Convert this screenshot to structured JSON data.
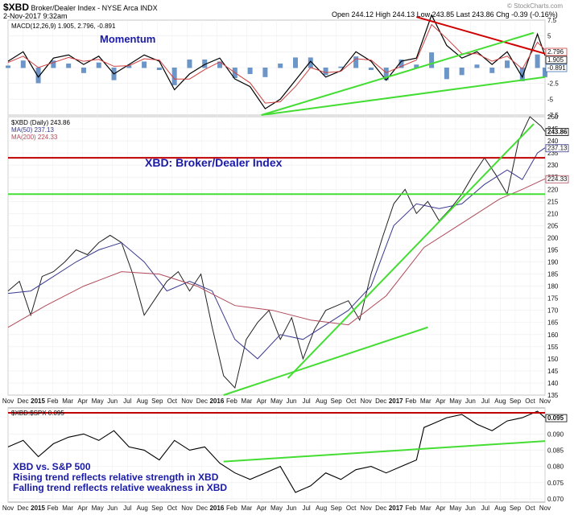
{
  "header": {
    "ticker": "$XBD",
    "description": "Broker/Dealer Index - NYSE Arca INDX",
    "date": "2-Nov-2017 9:32am",
    "ohlc": "Open 244.12  High 244.13  Low 243.85  Last 243.86  Chg -0.39 (-0.16%)",
    "watermark": "© StockCharts.com"
  },
  "chart_data": [
    {
      "type": "line",
      "name": "macd-panel",
      "legend": "MACD(12,26,9) 1.905, 2.796, -0.891",
      "label": "Momentum",
      "ylim": [
        -7.5,
        7.5
      ],
      "yticks": [
        -7.5,
        -5.0,
        -2.5,
        0.0,
        2.5,
        5.0,
        7.5
      ],
      "last_values": [
        "2.796",
        "1.905",
        "-0.891"
      ],
      "series": [
        {
          "name": "MACD",
          "x": [
            0,
            4,
            8,
            12,
            16,
            20,
            24,
            28,
            32,
            36,
            40,
            44,
            48,
            52,
            56,
            60,
            64,
            68,
            72,
            76,
            80,
            84,
            88,
            92,
            96,
            100,
            104,
            108,
            112,
            116,
            120,
            124,
            128,
            132,
            136,
            140,
            142
          ],
          "values": [
            1.0,
            2.5,
            -1.5,
            1.5,
            2.0,
            0.5,
            1.8,
            -1.0,
            0.5,
            2.0,
            1.0,
            -3.5,
            -1.0,
            0.5,
            1.5,
            -1.8,
            -3.0,
            -6.5,
            -5.0,
            -2.0,
            1.0,
            -1.5,
            -0.5,
            2.5,
            1.0,
            -2.0,
            1.0,
            1.5,
            8.3,
            3.5,
            1.5,
            2.5,
            0.5,
            2.5,
            -1.5,
            5.3,
            1.9
          ]
        },
        {
          "name": "Signal",
          "x": [
            0,
            4,
            8,
            12,
            16,
            20,
            24,
            28,
            32,
            36,
            40,
            44,
            48,
            52,
            56,
            60,
            64,
            68,
            72,
            76,
            80,
            84,
            88,
            92,
            96,
            100,
            104,
            108,
            112,
            116,
            120,
            124,
            128,
            132,
            136,
            140,
            142
          ],
          "values": [
            0.8,
            1.8,
            0.0,
            0.8,
            1.6,
            1.0,
            1.3,
            0.2,
            0.3,
            1.4,
            1.2,
            -1.8,
            -1.8,
            -0.3,
            0.9,
            -0.8,
            -2.4,
            -5.6,
            -5.4,
            -3.0,
            0.0,
            -0.8,
            -0.6,
            1.4,
            1.2,
            -0.8,
            0.2,
            1.2,
            6.8,
            4.6,
            2.2,
            2.2,
            1.0,
            1.8,
            -0.2,
            4.0,
            2.8
          ]
        }
      ],
      "trendlines": [
        {
          "color": "#d00000",
          "from": [
            108,
            8.0
          ],
          "to": [
            142,
            2.2
          ]
        },
        {
          "color": "#44dd33",
          "from": [
            67,
            -7.5
          ],
          "to": [
            139,
            5.5
          ]
        },
        {
          "color": "#44dd33",
          "from": [
            67,
            -7.5
          ],
          "to": [
            142,
            -1.5
          ]
        }
      ]
    },
    {
      "type": "line",
      "name": "price-panel",
      "title": "XBD: Broker/Dealer Index",
      "legend": [
        "$XBD (Daily) 243.86",
        "MA(50) 237.13",
        "MA(200) 224.33"
      ],
      "ylim": [
        135,
        250
      ],
      "yticks": [
        135,
        140,
        145,
        150,
        155,
        160,
        165,
        170,
        175,
        180,
        185,
        190,
        195,
        200,
        205,
        210,
        215,
        220,
        225,
        230,
        235,
        240,
        245,
        250
      ],
      "last_values": [
        "243.86",
        "237.13",
        "224.33"
      ],
      "series": [
        {
          "name": "$XBD",
          "x": [
            0,
            3,
            6,
            9,
            12,
            15,
            18,
            21,
            24,
            27,
            30,
            33,
            36,
            39,
            42,
            45,
            48,
            51,
            54,
            57,
            60,
            63,
            66,
            69,
            72,
            75,
            78,
            81,
            84,
            87,
            90,
            93,
            96,
            99,
            102,
            105,
            108,
            111,
            114,
            117,
            120,
            123,
            126,
            129,
            132,
            135,
            138,
            141,
            142
          ],
          "values": [
            178,
            182,
            168,
            184,
            186,
            190,
            195,
            193,
            198,
            201,
            198,
            185,
            168,
            175,
            182,
            186,
            178,
            185,
            163,
            143,
            138,
            158,
            165,
            170,
            158,
            167,
            150,
            162,
            170,
            172,
            174,
            166,
            185,
            200,
            214,
            220,
            210,
            215,
            207,
            212,
            218,
            226,
            233,
            226,
            218,
            240,
            250,
            246,
            243.86
          ]
        },
        {
          "name": "MA(50)",
          "x": [
            0,
            6,
            12,
            18,
            24,
            30,
            36,
            42,
            48,
            54,
            60,
            66,
            72,
            78,
            84,
            90,
            96,
            102,
            108,
            114,
            120,
            126,
            132,
            136,
            140,
            142
          ],
          "values": [
            177,
            178,
            184,
            190,
            195,
            198,
            190,
            178,
            182,
            178,
            158,
            150,
            160,
            158,
            164,
            170,
            180,
            205,
            214,
            212,
            214,
            222,
            228,
            224,
            235,
            237.13
          ]
        },
        {
          "name": "MA(200)",
          "x": [
            0,
            10,
            20,
            30,
            40,
            50,
            60,
            70,
            80,
            90,
            100,
            110,
            120,
            130,
            136,
            142
          ],
          "values": [
            163,
            172,
            180,
            186,
            185,
            180,
            172,
            170,
            166,
            164,
            176,
            196,
            206,
            216,
            220,
            224.33
          ]
        }
      ],
      "trendlines": [
        {
          "color": "#c00000",
          "from": [
            0,
            233
          ],
          "to": [
            142,
            233
          ]
        },
        {
          "color": "#44dd33",
          "from": [
            0,
            218
          ],
          "to": [
            142,
            218
          ]
        },
        {
          "color": "#44dd33",
          "from": [
            57,
            135
          ],
          "to": [
            111,
            163
          ]
        },
        {
          "color": "#44dd33",
          "from": [
            74,
            142
          ],
          "to": [
            139,
            247
          ]
        }
      ]
    },
    {
      "type": "line",
      "name": "ratio-panel",
      "legend": "$XBD:$SPX 0.095",
      "annotations": [
        "XBD vs. S&P 500",
        "Rising trend reflects relative strength in XBD",
        "Falling trend reflects relative weakness in XBD"
      ],
      "ylim": [
        0.069,
        0.098
      ],
      "yticks": [
        "0.070",
        "0.075",
        "0.080",
        "0.085",
        "0.090",
        "0.095"
      ],
      "last_value": "0.095",
      "series": [
        {
          "name": "$XBD:$SPX",
          "x": [
            0,
            4,
            8,
            12,
            16,
            20,
            24,
            28,
            32,
            36,
            40,
            44,
            48,
            52,
            56,
            60,
            64,
            68,
            72,
            76,
            80,
            84,
            88,
            92,
            96,
            100,
            104,
            108,
            110,
            112,
            116,
            120,
            124,
            128,
            132,
            136,
            140,
            142
          ],
          "values": [
            0.086,
            0.088,
            0.083,
            0.087,
            0.089,
            0.09,
            0.088,
            0.091,
            0.086,
            0.085,
            0.082,
            0.088,
            0.085,
            0.086,
            0.081,
            0.078,
            0.076,
            0.078,
            0.08,
            0.072,
            0.074,
            0.078,
            0.076,
            0.079,
            0.08,
            0.078,
            0.08,
            0.082,
            0.092,
            0.093,
            0.095,
            0.096,
            0.093,
            0.091,
            0.094,
            0.095,
            0.097,
            0.095
          ]
        }
      ],
      "trendlines": [
        {
          "color": "#c00000",
          "from": [
            0,
            0.0965
          ],
          "to": [
            142,
            0.0965
          ]
        },
        {
          "color": "#44dd33",
          "from": [
            57,
            0.0815
          ],
          "to": [
            142,
            0.0878
          ]
        }
      ]
    }
  ],
  "xaxis": {
    "labels": [
      "Nov",
      "Dec",
      "2015",
      "Feb",
      "Mar",
      "Apr",
      "May",
      "Jun",
      "Jul",
      "Aug",
      "Sep",
      "Oct",
      "Nov",
      "Dec",
      "2016",
      "Feb",
      "Mar",
      "Apr",
      "May",
      "Jun",
      "Jul",
      "Aug",
      "Sep",
      "Oct",
      "Nov",
      "Dec",
      "2017",
      "Feb",
      "Mar",
      "Apr",
      "May",
      "Jun",
      "Jul",
      "Aug",
      "Sep",
      "Oct",
      "Nov"
    ],
    "bold": [
      "2015",
      "2016",
      "2017"
    ]
  }
}
